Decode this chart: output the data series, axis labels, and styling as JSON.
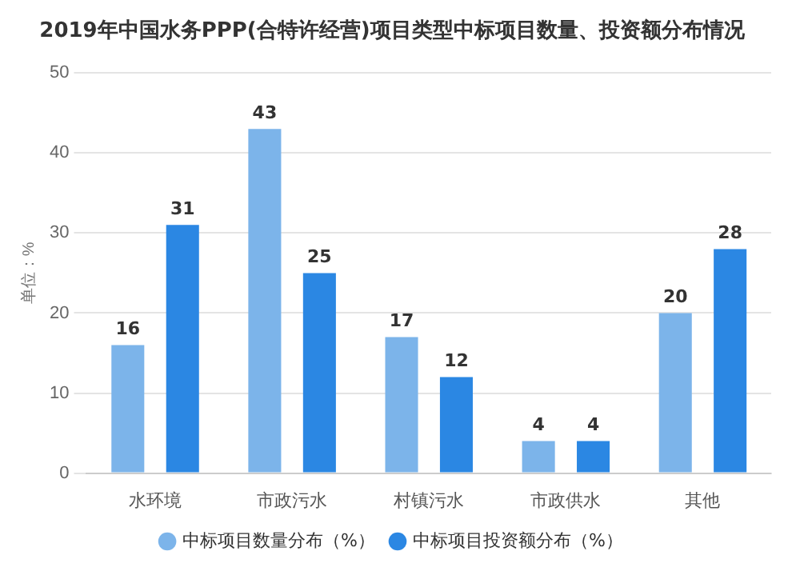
{
  "chart_data": {
    "type": "bar",
    "title": "2019年中国水务PPP(合特许经营)项目类型中标项目数量、投资额分布情况",
    "ylabel": "单位：%",
    "categories": [
      "水环境",
      "市政污水",
      "村镇污水",
      "市政供水",
      "其他"
    ],
    "series": [
      {
        "name": "中标项目数量分布（%）",
        "color": "#7cb4ea",
        "values": [
          16,
          43,
          17,
          4,
          20
        ]
      },
      {
        "name": "中标项目投资额分布（%）",
        "color": "#2b87e3",
        "values": [
          31,
          25,
          12,
          4,
          28
        ]
      }
    ],
    "ylim": [
      0,
      50
    ],
    "yticks": [
      0,
      10,
      20,
      30,
      40,
      50
    ],
    "grid": "y",
    "legend": "bottom",
    "data_labels": true
  }
}
